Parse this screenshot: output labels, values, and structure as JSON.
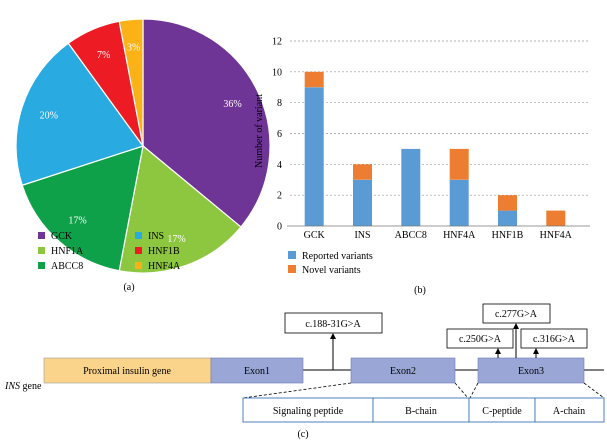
{
  "colors": {
    "GCK": "#6f3596",
    "INS": "#29abe2",
    "HNF1A": "#8dc63f",
    "HNF1B": "#ed1c24",
    "ABCC8": "#0fa14a",
    "HNF4A": "#fbb216",
    "reported": "#5b9bd5",
    "novel": "#ed7d31",
    "proximal": "#fbd48c",
    "exon": "#9aa7d6",
    "label_border": "#3a73b8"
  },
  "panel_labels": {
    "a": "(a)",
    "b": "(b)",
    "c": "(c)"
  },
  "chart_data": [
    {
      "type": "pie",
      "panel": "(a)",
      "categories": [
        "GCK",
        "HNF1A",
        "ABCC8",
        "INS",
        "HNF1B",
        "HNF4A"
      ],
      "values": [
        36,
        17,
        17,
        20,
        7,
        3
      ],
      "value_labels": [
        "36%",
        "17%",
        "17%",
        "20%",
        "7%",
        "3%"
      ],
      "legend": [
        {
          "label": "GCK",
          "key": "GCK"
        },
        {
          "label": "INS",
          "key": "INS"
        },
        {
          "label": "HNF1A",
          "key": "HNF1A"
        },
        {
          "label": "HNF1B",
          "key": "HNF1B"
        },
        {
          "label": "ABCC8",
          "key": "ABCC8"
        },
        {
          "label": "HNF4A",
          "key": "HNF4A"
        }
      ],
      "legend_placement": "bottom"
    },
    {
      "type": "bar",
      "stacked": true,
      "panel": "(b)",
      "categories": [
        "GCK",
        "INS",
        "ABCC8",
        "HNF4A",
        "HNF1B",
        "HNF4A"
      ],
      "series": [
        {
          "name": "Reported variants",
          "values": [
            9,
            3,
            5,
            3,
            1,
            0
          ]
        },
        {
          "name": "Novel variants",
          "values": [
            1,
            1,
            0,
            2,
            1,
            1
          ]
        }
      ],
      "ylabel": "Number of variant",
      "xlabel": "",
      "ylim": [
        0,
        12
      ],
      "yticks": [
        0,
        2,
        4,
        6,
        8,
        10,
        12
      ],
      "grid": true,
      "legend_placement": "bottom-left"
    }
  ],
  "diagram": {
    "gene_label_italic": "INS",
    "gene_label_rest": " gene",
    "proximal": "Proximal insulin gene",
    "exons": [
      "Exon1",
      "Exon2",
      "Exon3"
    ],
    "mutations": [
      "c.188-31G>A",
      "c.250G>A",
      "c.277G>A",
      "c.316G>A"
    ],
    "segments": [
      "Signaling peptide",
      "B-chain",
      "C-peptide",
      "A-chain"
    ]
  }
}
